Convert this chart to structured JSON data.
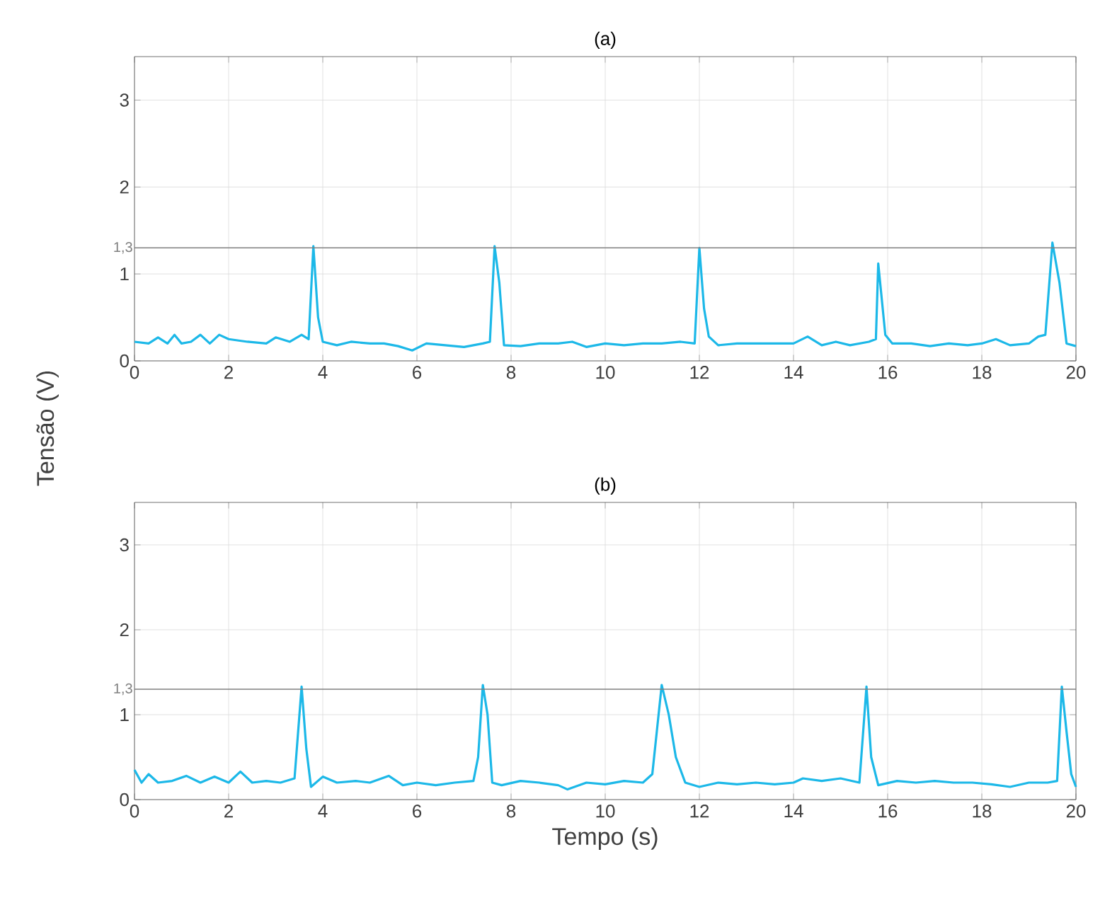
{
  "chart_data": [
    {
      "type": "line",
      "title": "(a)",
      "ylabel": "Tensão (V)",
      "xlim": [
        0,
        20
      ],
      "ylim": [
        0,
        3.5
      ],
      "xticks": [
        0,
        2,
        4,
        6,
        8,
        10,
        12,
        14,
        16,
        18,
        20
      ],
      "yticks": [
        0,
        1,
        2,
        3
      ],
      "grid": true,
      "ref_lines": [
        {
          "axis": "y",
          "value": 1.3,
          "label": "1,3",
          "color": "#7f7f7f"
        }
      ],
      "series": [
        {
          "color": "#1cb8e8",
          "x": [
            0,
            0.3,
            0.5,
            0.7,
            0.85,
            1.0,
            1.2,
            1.4,
            1.6,
            1.8,
            2.0,
            2.4,
            2.8,
            3.0,
            3.3,
            3.55,
            3.7,
            3.8,
            3.9,
            4.0,
            4.3,
            4.6,
            5.0,
            5.3,
            5.6,
            5.9,
            6.2,
            6.6,
            7.0,
            7.4,
            7.55,
            7.65,
            7.75,
            7.85,
            8.2,
            8.6,
            9.0,
            9.3,
            9.6,
            10.0,
            10.4,
            10.8,
            11.2,
            11.6,
            11.9,
            12.0,
            12.1,
            12.2,
            12.4,
            12.8,
            13.2,
            13.6,
            14.0,
            14.3,
            14.6,
            14.9,
            15.2,
            15.6,
            15.75,
            15.8,
            15.95,
            16.1,
            16.5,
            16.9,
            17.3,
            17.7,
            18.0,
            18.3,
            18.6,
            19.0,
            19.2,
            19.35,
            19.5,
            19.65,
            19.8,
            20
          ],
          "values": [
            0.22,
            0.2,
            0.27,
            0.2,
            0.3,
            0.2,
            0.22,
            0.3,
            0.2,
            0.3,
            0.25,
            0.22,
            0.2,
            0.27,
            0.22,
            0.3,
            0.25,
            1.32,
            0.5,
            0.22,
            0.18,
            0.22,
            0.2,
            0.2,
            0.17,
            0.12,
            0.2,
            0.18,
            0.16,
            0.2,
            0.22,
            1.32,
            0.9,
            0.18,
            0.17,
            0.2,
            0.2,
            0.22,
            0.16,
            0.2,
            0.18,
            0.2,
            0.2,
            0.22,
            0.2,
            1.3,
            0.6,
            0.28,
            0.18,
            0.2,
            0.2,
            0.2,
            0.2,
            0.28,
            0.18,
            0.22,
            0.18,
            0.22,
            0.25,
            1.12,
            0.3,
            0.2,
            0.2,
            0.17,
            0.2,
            0.18,
            0.2,
            0.25,
            0.18,
            0.2,
            0.28,
            0.3,
            1.36,
            0.9,
            0.2,
            0.17
          ]
        }
      ]
    },
    {
      "type": "line",
      "title": "(b)",
      "xlabel": "Tempo (s)",
      "xlim": [
        0,
        20
      ],
      "ylim": [
        0,
        3.5
      ],
      "xticks": [
        0,
        2,
        4,
        6,
        8,
        10,
        12,
        14,
        16,
        18,
        20
      ],
      "yticks": [
        0,
        1,
        2,
        3
      ],
      "grid": true,
      "ref_lines": [
        {
          "axis": "y",
          "value": 1.3,
          "label": "1,3",
          "color": "#7f7f7f"
        }
      ],
      "series": [
        {
          "color": "#1cb8e8",
          "x": [
            0,
            0.15,
            0.3,
            0.5,
            0.8,
            1.1,
            1.4,
            1.7,
            2.0,
            2.25,
            2.5,
            2.8,
            3.1,
            3.4,
            3.55,
            3.65,
            3.75,
            4.0,
            4.3,
            4.7,
            5.0,
            5.4,
            5.7,
            6.0,
            6.4,
            6.8,
            7.2,
            7.3,
            7.4,
            7.5,
            7.6,
            7.8,
            8.2,
            8.6,
            9.0,
            9.2,
            9.6,
            10.0,
            10.4,
            10.8,
            11.0,
            11.2,
            11.35,
            11.5,
            11.7,
            12.0,
            12.4,
            12.8,
            13.2,
            13.6,
            14.0,
            14.2,
            14.6,
            15.0,
            15.4,
            15.55,
            15.65,
            15.8,
            16.2,
            16.6,
            17.0,
            17.4,
            17.8,
            18.2,
            18.6,
            19.0,
            19.4,
            19.6,
            19.7,
            19.8,
            19.9,
            20
          ],
          "values": [
            0.35,
            0.2,
            0.3,
            0.2,
            0.22,
            0.28,
            0.2,
            0.27,
            0.2,
            0.33,
            0.2,
            0.22,
            0.2,
            0.25,
            1.33,
            0.6,
            0.15,
            0.27,
            0.2,
            0.22,
            0.2,
            0.28,
            0.17,
            0.2,
            0.17,
            0.2,
            0.22,
            0.5,
            1.35,
            1.0,
            0.2,
            0.17,
            0.22,
            0.2,
            0.17,
            0.12,
            0.2,
            0.18,
            0.22,
            0.2,
            0.3,
            1.35,
            1.0,
            0.5,
            0.2,
            0.15,
            0.2,
            0.18,
            0.2,
            0.18,
            0.2,
            0.25,
            0.22,
            0.25,
            0.2,
            1.33,
            0.5,
            0.17,
            0.22,
            0.2,
            0.22,
            0.2,
            0.2,
            0.18,
            0.15,
            0.2,
            0.2,
            0.22,
            1.33,
            0.8,
            0.3,
            0.15
          ]
        }
      ]
    }
  ]
}
